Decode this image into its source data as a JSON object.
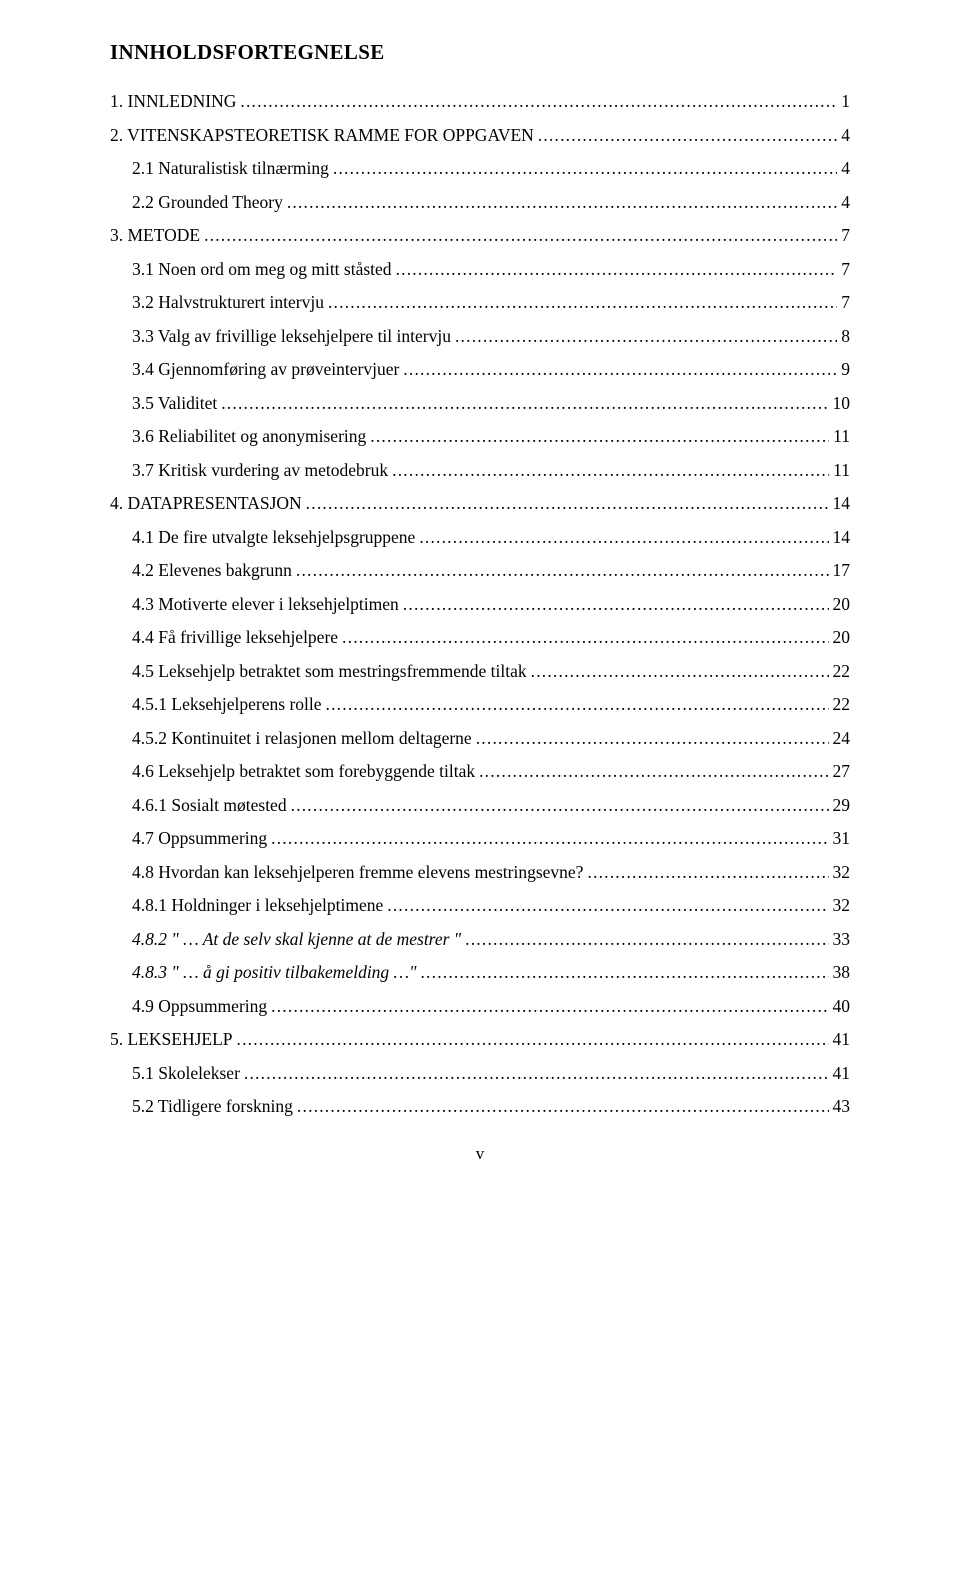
{
  "title": "INNHOLDSFORTEGNELSE",
  "page_marker": "v",
  "entries": [
    {
      "label": "1. INNLEDNING",
      "page": "1",
      "indent": 0,
      "italic": false
    },
    {
      "label": "2. VITENSKAPSTEORETISK RAMME FOR OPPGAVEN",
      "page": "4",
      "indent": 0,
      "italic": false
    },
    {
      "label": "2.1  Naturalistisk tilnærming",
      "page": "4",
      "indent": 1,
      "italic": false
    },
    {
      "label": "2.2  Grounded Theory",
      "page": "4",
      "indent": 1,
      "italic": false
    },
    {
      "label": "3. METODE",
      "page": "7",
      "indent": 0,
      "italic": false
    },
    {
      "label": "3.1  Noen ord om meg og mitt ståsted",
      "page": "7",
      "indent": 1,
      "italic": false
    },
    {
      "label": "3.2  Halvstrukturert intervju",
      "page": "7",
      "indent": 1,
      "italic": false
    },
    {
      "label": "3.3  Valg av frivillige leksehjelpere til intervju",
      "page": "8",
      "indent": 1,
      "italic": false
    },
    {
      "label": "3.4  Gjennomføring av prøveintervjuer",
      "page": "9",
      "indent": 1,
      "italic": false
    },
    {
      "label": "3.5  Validitet",
      "page": "10",
      "indent": 1,
      "italic": false
    },
    {
      "label": "3.6  Reliabilitet og anonymisering",
      "page": "11",
      "indent": 1,
      "italic": false
    },
    {
      "label": "3.7  Kritisk vurdering av metodebruk",
      "page": "11",
      "indent": 1,
      "italic": false
    },
    {
      "label": "4. DATAPRESENTASJON",
      "page": "14",
      "indent": 0,
      "italic": false
    },
    {
      "label": "4.1  De fire utvalgte leksehjelpsgruppene",
      "page": "14",
      "indent": 1,
      "italic": false
    },
    {
      "label": "4.2  Elevenes bakgrunn",
      "page": "17",
      "indent": 1,
      "italic": false
    },
    {
      "label": "4.3  Motiverte elever i leksehjelptimen",
      "page": "20",
      "indent": 1,
      "italic": false
    },
    {
      "label": "4.4  Få frivillige leksehjelpere",
      "page": "20",
      "indent": 1,
      "italic": false
    },
    {
      "label": "4.5  Leksehjelp betraktet som mestringsfremmende tiltak",
      "page": "22",
      "indent": 1,
      "italic": false
    },
    {
      "label": "4.5.1  Leksehjelperens rolle",
      "page": "22",
      "indent": 2,
      "italic": false
    },
    {
      "label": "4.5.2  Kontinuitet i relasjonen mellom deltagerne",
      "page": "24",
      "indent": 2,
      "italic": false
    },
    {
      "label": "4.6  Leksehjelp betraktet som forebyggende tiltak",
      "page": "27",
      "indent": 1,
      "italic": false
    },
    {
      "label": "4.6.1  Sosialt møtested",
      "page": "29",
      "indent": 2,
      "italic": false
    },
    {
      "label": "4.7  Oppsummering",
      "page": "31",
      "indent": 1,
      "italic": false
    },
    {
      "label": "4.8   Hvordan kan leksehjelperen fremme elevens mestringsevne?",
      "page": "32",
      "indent": 1,
      "italic": false
    },
    {
      "label": "4.8.1  Holdninger i leksehjelptimene",
      "page": "32",
      "indent": 2,
      "italic": false
    },
    {
      "label": "4.8.2  \" … At de selv skal kjenne at de mestrer \"",
      "page": "33",
      "indent": 2,
      "italic": true
    },
    {
      "label": "4.8.3  \" … å gi positiv tilbakemelding …\"",
      "page": "38",
      "indent": 2,
      "italic": true
    },
    {
      "label": "4.9   Oppsummering",
      "page": "40",
      "indent": 1,
      "italic": false
    },
    {
      "label": "5. LEKSEHJELP",
      "page": "41",
      "indent": 0,
      "italic": false
    },
    {
      "label": "5.1  Skolelekser",
      "page": "41",
      "indent": 1,
      "italic": false
    },
    {
      "label": "5.2  Tidligere forskning",
      "page": "43",
      "indent": 1,
      "italic": false
    }
  ]
}
